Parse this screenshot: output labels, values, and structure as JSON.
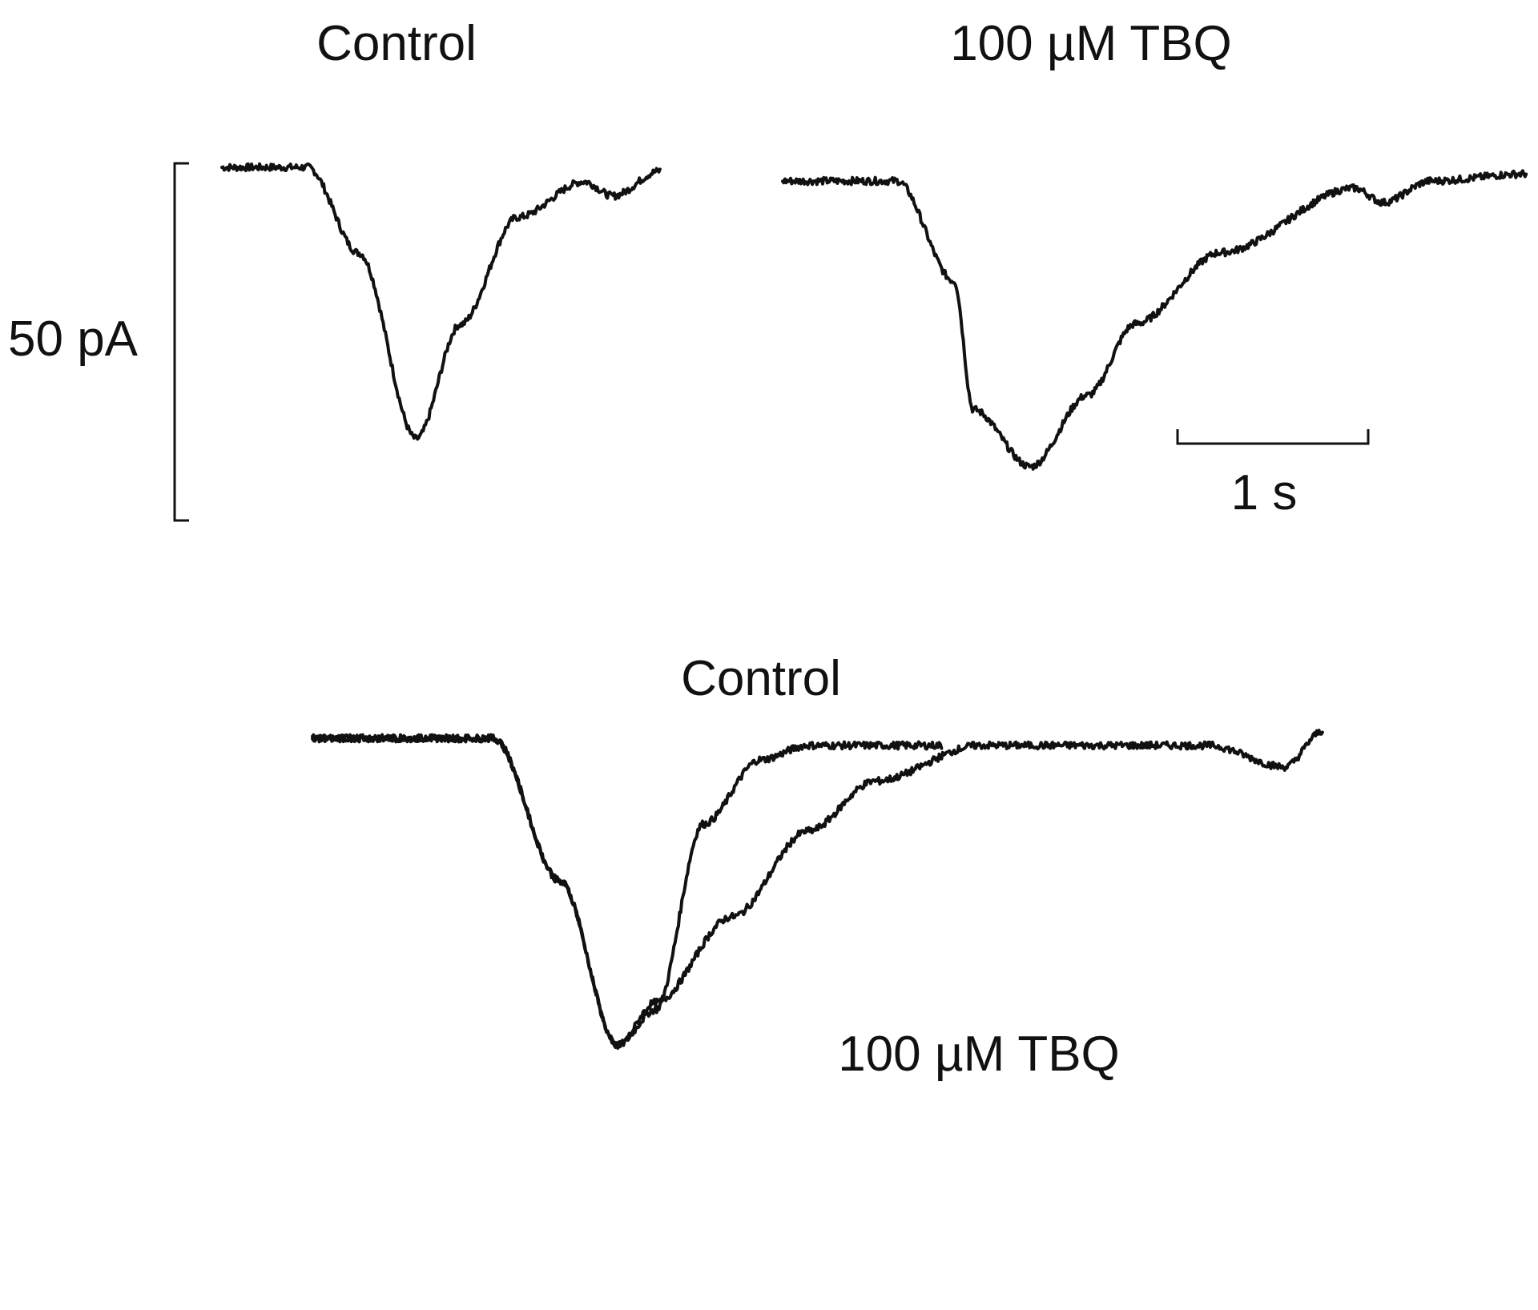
{
  "chart_data": [
    {
      "type": "line",
      "panel": "top-left",
      "title": "Control",
      "x_unit": "s",
      "y_unit": "pA",
      "series": [
        {
          "x": [
            0,
            0.45,
            0.72,
            1.02,
            1.25,
            1.55,
            1.9,
            2.05,
            2.3
          ],
          "y": [
            0,
            0,
            -12,
            -38,
            -22,
            -7,
            -2,
            -4,
            -0.5
          ]
        }
      ]
    },
    {
      "type": "line",
      "panel": "top-right",
      "title": "100 µM TBQ",
      "x_unit": "s",
      "y_unit": "pA",
      "series": [
        {
          "x": [
            0,
            0.6,
            0.9,
            1.0,
            1.3,
            1.6,
            1.85,
            2.3,
            3.0,
            3.15,
            3.4,
            3.9
          ],
          "y": [
            0,
            0,
            -14,
            -32,
            -40,
            -30,
            -20,
            -10,
            -1,
            -3,
            0,
            1
          ]
        }
      ]
    },
    {
      "type": "line",
      "panel": "bottom",
      "title": "Control",
      "x_unit": "s",
      "y_unit": "pA",
      "annotations": [
        "100 µM TBQ"
      ],
      "series": [
        {
          "label": "Control",
          "x": [
            0,
            0.95,
            1.3,
            1.6,
            1.8,
            2.05,
            2.35,
            2.6,
            3.3
          ],
          "y": [
            0,
            0,
            -20,
            -43,
            -38,
            -12,
            -3,
            -1,
            -1
          ]
        },
        {
          "label": "100 µM TBQ",
          "x": [
            0,
            0.95,
            1.3,
            1.6,
            1.8,
            2.2,
            2.6,
            2.95,
            3.5,
            4.7,
            5.1,
            5.3
          ],
          "y": [
            0,
            0,
            -20,
            -43,
            -37,
            -25,
            -13,
            -6,
            -1,
            -1,
            -4,
            1
          ]
        }
      ]
    }
  ],
  "scalebars": {
    "current_label": "50 pA",
    "current_value": 50,
    "time_label": "1 s",
    "time_value": 1
  }
}
